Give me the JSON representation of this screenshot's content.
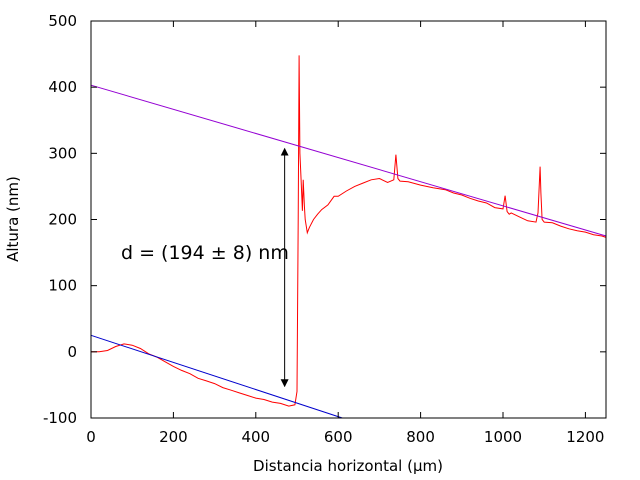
{
  "chart_data": {
    "type": "line",
    "title": "",
    "xlabel": "Distancia horizontal (μm)",
    "ylabel": "Altura (nm)",
    "xlim": [
      0,
      1250
    ],
    "ylim": [
      -100,
      500
    ],
    "xticks": [
      0,
      200,
      400,
      600,
      800,
      1000,
      1200
    ],
    "yticks": [
      -100,
      0,
      100,
      200,
      300,
      400,
      500
    ],
    "grid": false,
    "legend": "none",
    "annotation": {
      "text": "d = (194 ± 8) nm",
      "arrow_x": 470,
      "arrow_y_range": [
        -52,
        307
      ]
    },
    "series": [
      {
        "color": "#ff0000",
        "style": "profile",
        "x": [
          0,
          20,
          40,
          60,
          80,
          100,
          120,
          140,
          160,
          180,
          200,
          220,
          240,
          260,
          280,
          300,
          320,
          340,
          360,
          380,
          400,
          420,
          440,
          460,
          480,
          495,
          500,
          503,
          505,
          507,
          510,
          513,
          515,
          518,
          520,
          525,
          530,
          540,
          550,
          560,
          575,
          590,
          600,
          620,
          640,
          660,
          680,
          700,
          720,
          735,
          740,
          745,
          750,
          770,
          800,
          830,
          860,
          880,
          900,
          920,
          940,
          960,
          980,
          1000,
          1005,
          1010,
          1015,
          1020,
          1040,
          1060,
          1080,
          1085,
          1090,
          1092,
          1095,
          1100,
          1120,
          1140,
          1160,
          1180,
          1200,
          1220,
          1240,
          1250
        ],
        "y": [
          0,
          0,
          2,
          8,
          12,
          10,
          5,
          -3,
          -8,
          -15,
          -22,
          -28,
          -33,
          -40,
          -44,
          -48,
          -54,
          -58,
          -62,
          -66,
          -70,
          -72,
          -76,
          -78,
          -82,
          -80,
          -60,
          200,
          448,
          300,
          260,
          213,
          260,
          220,
          200,
          180,
          188,
          200,
          208,
          215,
          222,
          235,
          235,
          243,
          250,
          255,
          260,
          262,
          256,
          260,
          298,
          262,
          258,
          257,
          252,
          248,
          245,
          240,
          237,
          232,
          228,
          225,
          218,
          216,
          236,
          212,
          208,
          210,
          204,
          198,
          196,
          210,
          280,
          240,
          200,
          196,
          195,
          190,
          186,
          183,
          181,
          177,
          175,
          173
        ]
      },
      {
        "color": "#9400d3",
        "style": "fit",
        "x": [
          0,
          1250
        ],
        "y": [
          403,
          175
        ]
      },
      {
        "color": "#0000cc",
        "style": "fit",
        "x": [
          0,
          610
        ],
        "y": [
          25,
          -100
        ]
      }
    ]
  }
}
